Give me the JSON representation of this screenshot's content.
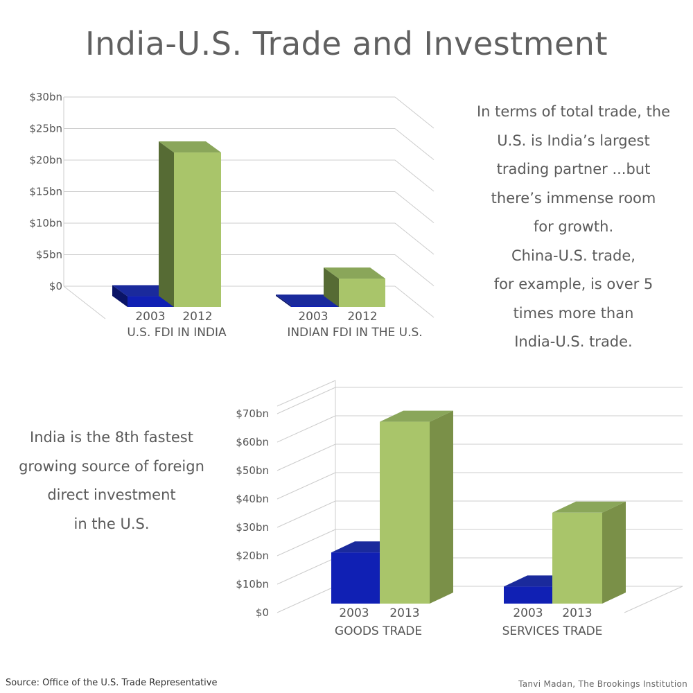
{
  "title": "India-U.S. Trade and Investment",
  "note_top": [
    "In terms of total trade, the",
    "U.S. is India’s largest",
    "trading partner ...but",
    "there’s immense room",
    "for growth.",
    "China-U.S. trade,",
    "for example, is over 5",
    "times more than",
    "India-U.S. trade."
  ],
  "note_bottom": [
    "India is the 8th fastest",
    "growing source of foreign",
    "direct investment",
    "in the U.S."
  ],
  "source": "Source: Office of the U.S. Trade Representative",
  "credit": "Tanvi Madan, The Brookings Institution",
  "colors": {
    "series_early": "#1020b4",
    "series_late": "#a9c56a",
    "grid": "#cccccc",
    "text": "#555555"
  },
  "chart_data": [
    {
      "type": "bar",
      "style": "3d-grouped",
      "ylim": [
        0,
        30
      ],
      "yticks": [
        "$0",
        "$5bn",
        "$10bn",
        "$15bn",
        "$20bn",
        "$25bn",
        "$30bn"
      ],
      "groups": [
        {
          "label": "U.S. FDI IN INDIA",
          "categories": [
            "2003",
            "2012"
          ],
          "values": [
            1.7,
            24.5
          ]
        },
        {
          "label": "INDIAN FDI IN THE U.S.",
          "categories": [
            "2003",
            "2012"
          ],
          "values": [
            0.1,
            4.5
          ]
        }
      ],
      "grid": true
    },
    {
      "type": "bar",
      "style": "3d-grouped",
      "ylim": [
        0,
        70
      ],
      "yticks": [
        "$0",
        "$10bn",
        "$20bn",
        "$30bn",
        "$40bn",
        "$50bn",
        "$60bn",
        "$70bn"
      ],
      "groups": [
        {
          "label": "GOODS TRADE",
          "categories": [
            "2003",
            "2013"
          ],
          "values": [
            18,
            64
          ]
        },
        {
          "label": "SERVICES TRADE",
          "categories": [
            "2003",
            "2013"
          ],
          "values": [
            6,
            32
          ]
        }
      ],
      "grid": true
    }
  ]
}
